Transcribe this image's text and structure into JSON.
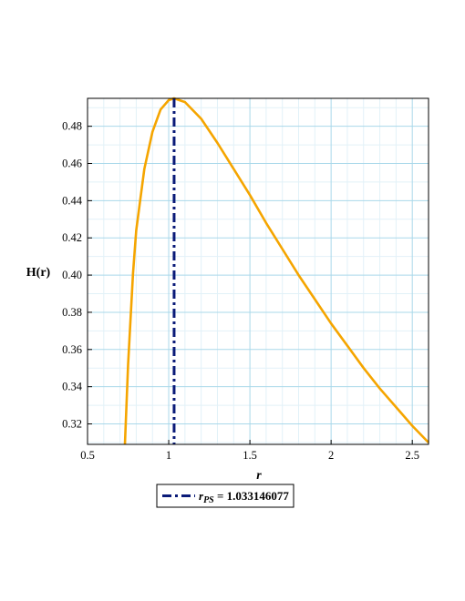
{
  "chart_data": {
    "type": "line",
    "xlabel": "r",
    "ylabel": "H(r)",
    "xlim": [
      0.5,
      2.6
    ],
    "ylim": [
      0.309,
      0.495
    ],
    "x_ticks": [
      0.5,
      1,
      1.5,
      2,
      2.5
    ],
    "x_tick_labels": [
      "0.5",
      "1",
      "1.5",
      "2",
      "2.5"
    ],
    "y_ticks": [
      0.32,
      0.34,
      0.36,
      0.38,
      0.4,
      0.42,
      0.44,
      0.46,
      0.48
    ],
    "y_tick_labels": [
      "0.32",
      "0.34",
      "0.36",
      "0.38",
      "0.40",
      "0.42",
      "0.44",
      "0.46",
      "0.48"
    ],
    "grid": true,
    "series": [
      {
        "color": "#f5a500",
        "style": "solid",
        "x": [
          0.73,
          0.75,
          0.78,
          0.8,
          0.85,
          0.9,
          0.95,
          1.0,
          1.033,
          1.1,
          1.2,
          1.3,
          1.4,
          1.5,
          1.6,
          1.7,
          1.8,
          1.9,
          2.0,
          2.1,
          2.2,
          2.3,
          2.4,
          2.5,
          2.6
        ],
        "y": [
          0.309,
          0.352,
          0.401,
          0.424,
          0.457,
          0.477,
          0.489,
          0.494,
          0.495,
          0.493,
          0.484,
          0.471,
          0.457,
          0.443,
          0.428,
          0.414,
          0.4,
          0.387,
          0.374,
          0.362,
          0.35,
          0.339,
          0.329,
          0.319,
          0.31
        ]
      },
      {
        "name": "r_PS = 1.033146077",
        "color": "#0a1a78",
        "style": "dashdot",
        "vertical_x": 1.033146077
      }
    ],
    "legend": {
      "position": "bottom-left",
      "symbol_main": "r",
      "symbol_sub": "PS",
      "value_text": " = 1.033146077"
    }
  }
}
